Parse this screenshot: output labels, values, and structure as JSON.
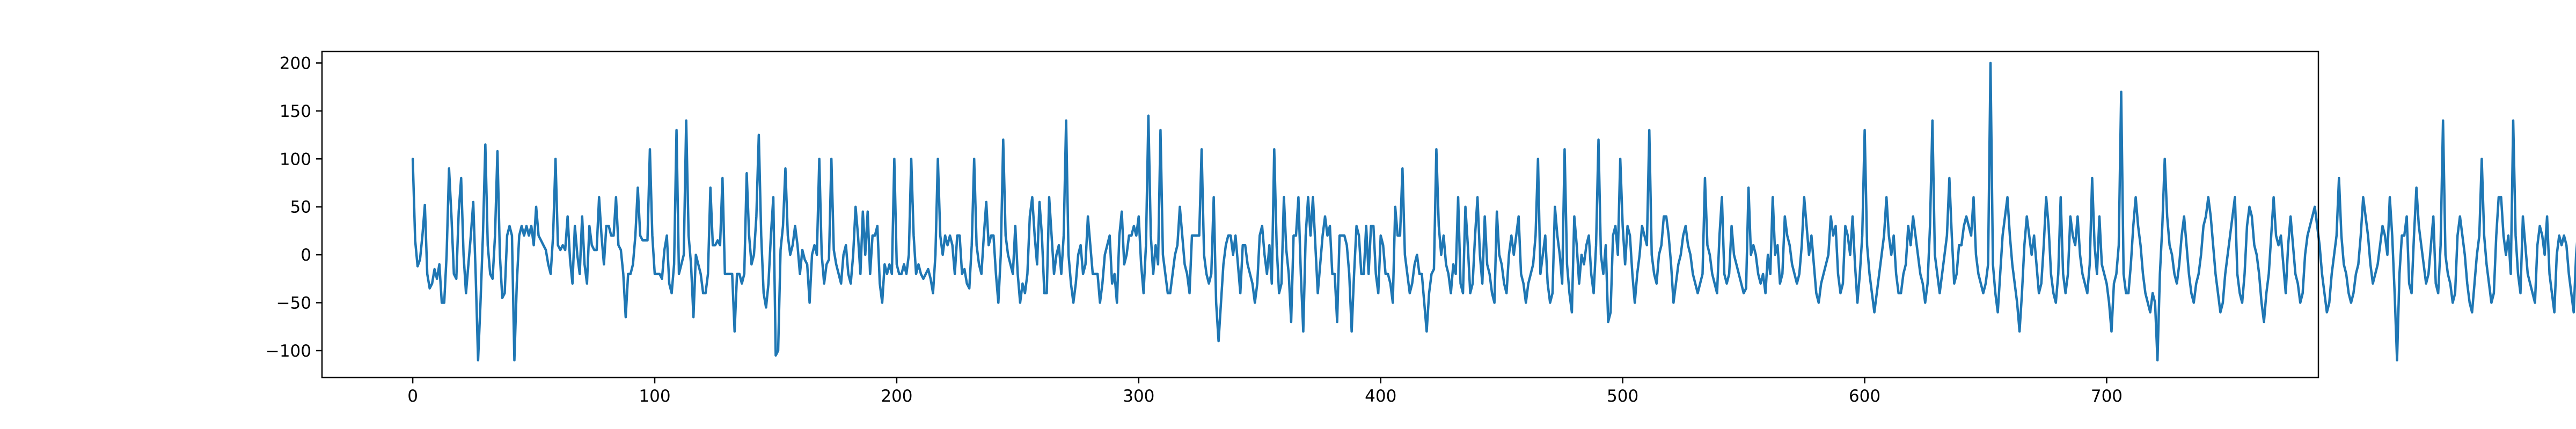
{
  "chart_data": {
    "type": "line",
    "title": "",
    "xlabel": "",
    "ylabel": "",
    "xlim": [
      -37.5,
      787.5
    ],
    "ylim": [
      -128,
      212
    ],
    "grid": false,
    "legend": "none",
    "x_ticks": [
      0,
      100,
      200,
      300,
      400,
      500,
      600,
      700
    ],
    "y_ticks": [
      -100,
      -50,
      0,
      50,
      100,
      150,
      200
    ],
    "x_tick_labels": [
      "0",
      "100",
      "200",
      "300",
      "400",
      "500",
      "600",
      "700"
    ],
    "y_tick_labels": [
      "−100",
      "−50",
      "0",
      "50",
      "100",
      "150",
      "200"
    ],
    "series": [
      {
        "color": "#1f77b4",
        "x_start": 0,
        "x_step": 1,
        "values": [
          100,
          15,
          -12,
          -5,
          20,
          52,
          -20,
          -35,
          -30,
          -15,
          -25,
          -10,
          -50,
          -50,
          0,
          90,
          40,
          -20,
          -25,
          45,
          80,
          0,
          -40,
          -10,
          20,
          55,
          -20,
          -110,
          -50,
          20,
          115,
          10,
          -20,
          -25,
          20,
          108,
          0,
          -45,
          -40,
          20,
          30,
          20,
          -110,
          -30,
          20,
          30,
          20,
          30,
          20,
          30,
          10,
          50,
          20,
          15,
          10,
          5,
          -10,
          -20,
          20,
          100,
          10,
          5,
          10,
          5,
          40,
          -5,
          -30,
          30,
          0,
          -20,
          40,
          -10,
          -30,
          30,
          10,
          5,
          5,
          60,
          20,
          -10,
          30,
          30,
          20,
          20,
          60,
          10,
          5,
          -20,
          -65,
          -20,
          -20,
          -10,
          20,
          70,
          20,
          15,
          15,
          15,
          110,
          20,
          -20,
          -20,
          -20,
          -25,
          5,
          20,
          -30,
          -40,
          -10,
          130,
          -20,
          -10,
          0,
          140,
          20,
          -10,
          -65,
          0,
          -10,
          -20,
          -40,
          -40,
          -20,
          70,
          10,
          10,
          15,
          10,
          80,
          -20,
          -20,
          -20,
          -20,
          -80,
          -20,
          -20,
          -30,
          -20,
          85,
          20,
          -10,
          0,
          40,
          125,
          20,
          -40,
          -55,
          -30,
          20,
          60,
          -105,
          -100,
          5,
          30,
          90,
          20,
          0,
          10,
          30,
          10,
          -20,
          5,
          -5,
          -10,
          -50,
          0,
          10,
          0,
          100,
          0,
          -30,
          -10,
          -5,
          100,
          5,
          -10,
          -20,
          -30,
          0,
          10,
          -20,
          -30,
          0,
          50,
          20,
          -20,
          45,
          0,
          45,
          -20,
          20,
          20,
          30,
          -30,
          -50,
          -10,
          -20,
          -10,
          -20,
          100,
          -10,
          -20,
          -20,
          -10,
          -20,
          0,
          100,
          20,
          -20,
          -10,
          -20,
          -25,
          -20,
          -15,
          -25,
          -40,
          0,
          100,
          20,
          0,
          20,
          10,
          20,
          10,
          -20,
          20,
          20,
          -20,
          -15,
          -30,
          -35,
          10,
          100,
          10,
          -10,
          -20,
          20,
          55,
          10,
          20,
          20,
          -20,
          -50,
          0,
          120,
          20,
          0,
          -10,
          -20,
          30,
          -20,
          -50,
          -30,
          -40,
          -20,
          40,
          60,
          20,
          -10,
          55,
          20,
          -40,
          -40,
          60,
          20,
          -20,
          0,
          10,
          -20,
          20,
          140,
          0,
          -30,
          -50,
          -30,
          0,
          10,
          -20,
          -10,
          40,
          10,
          -20,
          -20,
          -20,
          -50,
          -30,
          0,
          10,
          20,
          -30,
          -20,
          -50,
          20,
          45,
          -10,
          0,
          20,
          20,
          30,
          20,
          40,
          -10,
          -40,
          10,
          145,
          20,
          -20,
          10,
          -10,
          130,
          0,
          -20,
          -40,
          -40,
          -20,
          0,
          10,
          50,
          20,
          -10,
          -20,
          -40,
          20,
          20,
          20,
          20,
          110,
          0,
          -20,
          -30,
          -20,
          60,
          -50,
          -90,
          -50,
          -10,
          10,
          20,
          20,
          0,
          20,
          -10,
          -40,
          10,
          10,
          -10,
          -20,
          -30,
          -50,
          -30,
          20,
          30,
          0,
          -20,
          10,
          -30,
          110,
          10,
          -40,
          -30,
          60,
          5,
          -20,
          -70,
          20,
          20,
          60,
          -20,
          -80,
          20,
          60,
          20,
          60,
          10,
          -40,
          -10,
          20,
          40,
          20,
          30,
          -20,
          -20,
          -70,
          20,
          20,
          20,
          10,
          -20,
          -80,
          -20,
          30,
          20,
          -20,
          -20,
          30,
          -20,
          30,
          30,
          -20,
          -40,
          20,
          10,
          -20,
          -20,
          -30,
          -50,
          50,
          20,
          20,
          90,
          0,
          -20,
          -40,
          -30,
          -10,
          0,
          -20,
          -20,
          -50,
          -80,
          -40,
          -20,
          -15,
          110,
          30,
          0,
          20,
          -10,
          -20,
          -40,
          -10,
          -20,
          60,
          -30,
          -40,
          50,
          10,
          -40,
          -30,
          20,
          60,
          0,
          -30,
          40,
          -10,
          -20,
          -40,
          -50,
          45,
          0,
          -10,
          -30,
          -40,
          0,
          20,
          0,
          20,
          40,
          -20,
          -30,
          -50,
          -30,
          -20,
          -10,
          20,
          100,
          -20,
          0,
          20,
          -30,
          -50,
          -40,
          50,
          20,
          0,
          -30,
          110,
          -10,
          -40,
          -60,
          40,
          10,
          -30,
          0,
          -10,
          10,
          20,
          -20,
          -40,
          10,
          120,
          0,
          -20,
          10,
          -70,
          -60,
          20,
          30,
          0,
          100,
          30,
          -10,
          30,
          20,
          -20,
          -50,
          -20,
          0,
          30,
          20,
          10,
          130,
          0,
          -20,
          -30,
          0,
          10,
          40,
          40,
          20,
          -10,
          -50,
          -30,
          -10,
          0,
          20,
          30,
          10,
          0,
          -20,
          -30,
          -40,
          -30,
          -20,
          80,
          10,
          0,
          -20,
          -30,
          -40,
          20,
          60,
          -20,
          -30,
          -20,
          30,
          0,
          -10,
          -20,
          -30,
          -40,
          -35,
          70,
          0,
          10,
          0,
          -20,
          -30,
          -20,
          -40,
          0,
          -20,
          60,
          0,
          10,
          -30,
          -20,
          40,
          20,
          10,
          -10,
          -20,
          -30,
          -20,
          10,
          60,
          30,
          0,
          20,
          -10,
          -40,
          -50,
          -30,
          -20,
          -10,
          0,
          40,
          20,
          30,
          -20,
          -40,
          -30,
          30,
          20,
          0,
          40,
          -10,
          -50,
          -20,
          20,
          130,
          10,
          -20,
          -40,
          -60,
          -40,
          -20,
          0,
          20,
          60,
          20,
          0,
          20,
          -20,
          -40,
          -40,
          -20,
          -10,
          30,
          10,
          40,
          20,
          0,
          -20,
          -30,
          -50,
          -30,
          30,
          140,
          0,
          -20,
          -40,
          -20,
          0,
          20,
          80,
          20,
          -30,
          -20,
          10,
          10,
          30,
          40,
          30,
          20,
          60,
          0,
          -20,
          -30,
          -40,
          -30,
          -10,
          200,
          -10,
          -40,
          -60,
          -20,
          20,
          40,
          60,
          20,
          -10,
          -30,
          -50,
          -80,
          -40,
          10,
          40,
          20,
          0,
          20,
          -10,
          -40,
          -30,
          10,
          60,
          30,
          -20,
          -40,
          -50,
          -20,
          60,
          -20,
          -40,
          -20,
          40,
          20,
          10,
          40,
          0,
          -20,
          -30,
          -40,
          -10,
          80,
          10,
          -20,
          40,
          -10,
          -20,
          -30,
          -50,
          -80,
          -30,
          -20,
          10,
          170,
          -20,
          -40,
          -40,
          -10,
          30,
          60,
          30,
          10,
          -20,
          -40,
          -50,
          -60,
          -40,
          -50,
          -110,
          -20,
          30,
          100,
          40,
          10,
          0,
          -20,
          -30,
          -10,
          20,
          40,
          10,
          -20,
          -40,
          -50,
          -30,
          -20,
          0,
          30,
          40,
          60,
          40,
          10,
          -20,
          -40,
          -60,
          -50,
          -20,
          0,
          20,
          40,
          60,
          -20,
          -40,
          -50,
          -20,
          30,
          50,
          40,
          10,
          0,
          -20,
          -50,
          -70,
          -40,
          -20,
          20,
          60,
          20,
          10,
          20,
          -10,
          -40,
          10,
          40,
          10,
          -20,
          -30,
          -50,
          -40,
          0,
          20,
          30,
          40,
          50,
          30,
          10,
          -20,
          -40,
          -60,
          -50,
          -20,
          0,
          20,
          80,
          20,
          -10,
          -20,
          -40,
          -50,
          -40,
          -20,
          -10,
          20,
          60,
          40,
          20,
          -10,
          -30,
          -20,
          -10,
          10,
          30,
          20,
          0,
          60,
          20,
          -40,
          -110,
          -20,
          20,
          20,
          40,
          -30,
          -40,
          20,
          70,
          30,
          10,
          -10,
          -30,
          -20,
          10,
          40,
          -30,
          -40,
          10,
          140,
          0,
          -20,
          -30,
          -50,
          -40,
          20,
          40,
          20,
          0,
          -30,
          -50,
          -60,
          -30,
          0,
          20,
          100,
          20,
          -10,
          -30,
          -50,
          -40,
          20,
          60,
          60,
          20,
          0,
          20,
          -20,
          140,
          20,
          -20,
          -40,
          40,
          10,
          -20,
          -30,
          -40,
          -50,
          10,
          30,
          20,
          0,
          40,
          -20,
          -40,
          -60,
          0,
          20,
          10,
          20,
          10,
          -20,
          -40,
          -60,
          0,
          30,
          100,
          20,
          -20,
          -40,
          60,
          20,
          -20,
          -50,
          20,
          30,
          20,
          10,
          0,
          -20,
          -40,
          30,
          20,
          -40,
          -50,
          -10,
          70,
          20,
          -20,
          -40,
          10,
          60,
          40,
          20,
          0,
          -20,
          -40,
          -60,
          20,
          140,
          20,
          0,
          20,
          -20,
          -40,
          -60,
          -30,
          -10,
          20,
          40,
          -40,
          -10,
          10,
          40,
          10,
          -20,
          -40,
          0,
          30,
          10,
          20,
          120,
          -20,
          -60,
          -20,
          40,
          20,
          -10,
          -40,
          -30,
          -10,
          100,
          10,
          0,
          20,
          -20,
          -40,
          -40,
          20,
          40,
          10,
          0,
          -20,
          -40,
          -30,
          30,
          20,
          0,
          40,
          20,
          0,
          -10,
          20,
          10,
          -20,
          -40,
          -50,
          -30,
          10,
          20,
          40,
          20,
          -10,
          30,
          0,
          -20,
          -40,
          10,
          40,
          0,
          -20,
          -40,
          -50,
          -20,
          20,
          10,
          0,
          20,
          80,
          20,
          -10,
          -40,
          -30,
          20,
          60,
          40,
          0,
          -20,
          -40,
          -50,
          -10,
          20,
          60,
          40,
          20,
          0,
          -20,
          -40,
          -50,
          -20,
          10,
          80,
          0,
          20,
          10,
          -20,
          -40,
          -50,
          -30,
          -10,
          40,
          20,
          0,
          -20,
          -40,
          20,
          40,
          20,
          0,
          -10,
          -20,
          -40,
          -60,
          -30,
          0,
          20,
          50,
          60,
          20,
          0,
          -20,
          30,
          10,
          -10,
          -20,
          20,
          60,
          130,
          20,
          -10,
          -30,
          -40,
          -20,
          20,
          40,
          20,
          -20,
          -40,
          60,
          20,
          0,
          -20,
          -40,
          -50,
          -20,
          10,
          40,
          20,
          -20,
          40,
          20,
          -40,
          -10,
          40,
          10,
          -20,
          -40,
          -50,
          -40,
          -20,
          0,
          30,
          120,
          0,
          -20,
          -40,
          0,
          20,
          40,
          20,
          10,
          -20,
          -40,
          -60,
          -40,
          30,
          60,
          20,
          10,
          -20,
          -40,
          -50,
          -20,
          0,
          20,
          -20,
          60,
          100,
          20,
          -10,
          -40,
          20,
          10,
          -20,
          -40,
          -30,
          -20,
          -10,
          30,
          0,
          -20,
          10,
          40,
          20,
          -20,
          -40,
          -50,
          -20,
          20,
          40,
          60,
          30,
          0,
          -20,
          -40,
          -50,
          -30,
          -10,
          20,
          40,
          60,
          20,
          0,
          -20,
          -40,
          -30,
          40,
          20,
          10,
          -20,
          -40,
          -60,
          -20,
          10,
          20,
          130,
          0,
          -20,
          -40,
          -30,
          40,
          20,
          -10,
          -40,
          20,
          60,
          40,
          0,
          -20,
          -40,
          20,
          40,
          0,
          -20,
          120,
          0,
          -20,
          -40,
          -60,
          -40,
          20,
          40,
          20,
          0,
          -20,
          -40,
          -50,
          -30,
          30,
          20,
          0,
          -10,
          20,
          40,
          20,
          0,
          -20,
          -40,
          -40,
          -20,
          20,
          70,
          10,
          40,
          0,
          40,
          20,
          -20,
          0,
          20,
          10,
          -20,
          -40,
          -40,
          0,
          20,
          10,
          20,
          0,
          -20,
          -40,
          -50,
          -20,
          20,
          40,
          60,
          20,
          0,
          -20,
          -40,
          20,
          140,
          10,
          -20,
          -40,
          0,
          40,
          20,
          -10,
          -40,
          -50,
          -30,
          30,
          40,
          20,
          -10,
          -20,
          -40,
          -50,
          -20,
          20,
          40,
          20,
          0,
          -20,
          -30,
          -10,
          20,
          20,
          0,
          -20,
          -40,
          10,
          -10,
          20,
          -20
        ]
      }
    ]
  }
}
